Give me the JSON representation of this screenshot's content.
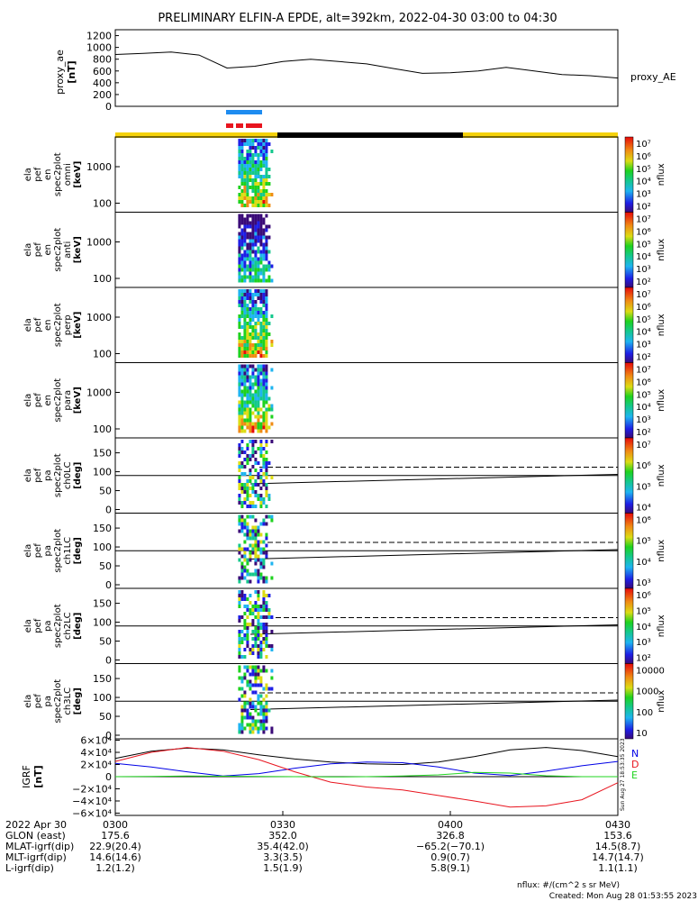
{
  "title": "PRELIMINARY ELFIN-A EPDE, alt=392km, 2022-04-30 03:00 to 04:30",
  "colors": {
    "blue_bar": "#1e8cf0",
    "red_bar": "#e8141e",
    "yellow_bar": "#f5d20a",
    "night_bar": "#000000",
    "bx": "#0000e6",
    "by": "#e8141e",
    "bz": "#1fd41f",
    "btot": "#000000"
  },
  "proxy_ae": {
    "ylabel_lines": [
      "proxy_ae",
      "[nT]"
    ],
    "legend": "proxy_AE",
    "yticks": [
      "0",
      "200",
      "400",
      "600",
      "800",
      "1000",
      "1200"
    ],
    "ylim": [
      0,
      1300
    ]
  },
  "spec_panels": [
    {
      "label_lines": [
        "ela",
        "pef",
        "en",
        "spec2plot",
        "omni",
        "[keV]"
      ],
      "yticks": [
        "100",
        "1000"
      ],
      "cbar_ticks": [
        "10⁷",
        "10⁶",
        "10⁵",
        "10⁴",
        "10³",
        "10²"
      ],
      "cbar_label": "nflux"
    },
    {
      "label_lines": [
        "ela",
        "pef",
        "en",
        "spec2plot",
        "anti",
        "[keV]"
      ],
      "yticks": [
        "100",
        "1000"
      ],
      "cbar_ticks": [
        "10⁷",
        "10⁶",
        "10⁵",
        "10⁴",
        "10³",
        "10²"
      ],
      "cbar_label": "nflux"
    },
    {
      "label_lines": [
        "ela",
        "pef",
        "en",
        "spec2plot",
        "perp",
        "[keV]"
      ],
      "yticks": [
        "100",
        "1000"
      ],
      "cbar_ticks": [
        "10⁷",
        "10⁶",
        "10⁵",
        "10⁴",
        "10³",
        "10²"
      ],
      "cbar_label": "nflux"
    },
    {
      "label_lines": [
        "ela",
        "pef",
        "en",
        "spec2plot",
        "para",
        "[keV]"
      ],
      "yticks": [
        "100",
        "1000"
      ],
      "cbar_ticks": [
        "10⁷",
        "10⁶",
        "10⁵",
        "10⁴",
        "10³",
        "10²"
      ],
      "cbar_label": "nflux"
    }
  ],
  "pa_panels": [
    {
      "label_lines": [
        "ela",
        "pef",
        "pa",
        "spec2plot",
        "ch0LC",
        "[deg]"
      ],
      "yticks": [
        "0",
        "50",
        "100",
        "150"
      ],
      "cbar_ticks": [
        "10⁷",
        "10⁶",
        "10⁵",
        "10⁴"
      ],
      "cbar_label": "nflux"
    },
    {
      "label_lines": [
        "ela",
        "pef",
        "pa",
        "spec2plot",
        "ch1LC",
        "[deg]"
      ],
      "yticks": [
        "0",
        "50",
        "100",
        "150"
      ],
      "cbar_ticks": [
        "10⁶",
        "10⁵",
        "10⁴",
        "10³"
      ],
      "cbar_label": "nflux"
    },
    {
      "label_lines": [
        "ela",
        "pef",
        "pa",
        "spec2plot",
        "ch2LC",
        "[deg]"
      ],
      "yticks": [
        "0",
        "50",
        "100",
        "150"
      ],
      "cbar_ticks": [
        "10⁶",
        "10⁵",
        "10⁴",
        "10³",
        "10²"
      ],
      "cbar_label": "nflux"
    },
    {
      "label_lines": [
        "ela",
        "pef",
        "pa",
        "spec2plot",
        "ch3LC",
        "[deg]"
      ],
      "yticks": [
        "0",
        "50",
        "100",
        "150"
      ],
      "cbar_ticks": [
        "10000",
        "1000",
        "100",
        "10"
      ],
      "cbar_label": "nflux"
    }
  ],
  "igrf": {
    "ylabel_lines": [
      "IGRF",
      "[nT]"
    ],
    "yticks": [
      "6×10⁴",
      "4×10⁴",
      "2×10⁴",
      "0",
      "−2×10⁴",
      "−4×10⁴",
      "−6×10⁴"
    ],
    "legend": [
      "N",
      "D",
      "E"
    ],
    "side_stamp": "Sun Aug 27 18:53:35 2023"
  },
  "ephemeris": {
    "rows": [
      {
        "label": "2022 Apr 30",
        "values": [
          "0300",
          "0330",
          "0400",
          "0430"
        ]
      },
      {
        "label": "GLON (east)",
        "values": [
          "175.6",
          "352.0",
          "326.8",
          "153.6"
        ]
      },
      {
        "label": "MLAT-igrf(dip)",
        "values": [
          "22.9(20.4)",
          "35.4(42.0)",
          "−65.2(−70.1)",
          "14.5(8.7)"
        ]
      },
      {
        "label": "MLT-igrf(dip)",
        "values": [
          "14.6(14.6)",
          "3.3(3.5)",
          "0.9(0.7)",
          "14.7(14.7)"
        ]
      },
      {
        "label": "L-igrf(dip)",
        "values": [
          "1.2(1.2)",
          "1.5(1.9)",
          "5.8(9.1)",
          "1.1(1.1)"
        ]
      }
    ]
  },
  "footer": {
    "units": "nflux: #/(cm^2 s sr MeV)",
    "created": "Created: Mon Aug 28 01:53:55 2023"
  },
  "chart_data": {
    "type": "line",
    "time_range": [
      "03:00",
      "04:30"
    ],
    "x_minutes": [
      0,
      5,
      10,
      15,
      20,
      25,
      30,
      35,
      40,
      45,
      50,
      55,
      60,
      65,
      70,
      75,
      80,
      85,
      90
    ],
    "proxy_ae": [
      880,
      900,
      920,
      870,
      650,
      680,
      760,
      800,
      760,
      720,
      640,
      560,
      570,
      600,
      660,
      600,
      540,
      520,
      480
    ],
    "igrf_total": [
      30000,
      42000,
      47000,
      44000,
      36000,
      29000,
      24000,
      21000,
      20000,
      24000,
      33000,
      44000,
      48000,
      43000,
      33000
    ],
    "igrf_bx": [
      22000,
      16000,
      8000,
      1000,
      5000,
      14000,
      21000,
      24000,
      23000,
      16000,
      6000,
      2000,
      9000,
      18000,
      25000
    ],
    "igrf_by": [
      25000,
      40000,
      48000,
      42000,
      28000,
      8000,
      -9000,
      -17000,
      -22000,
      -31000,
      -40000,
      -50000,
      -48000,
      -38000,
      -10000
    ],
    "igrf_bz": [
      0,
      500,
      1000,
      800,
      300,
      0,
      -500,
      0,
      1000,
      3000,
      7000,
      6000,
      1500,
      0,
      0
    ],
    "spec_activity_minutes": [
      22,
      27
    ]
  }
}
